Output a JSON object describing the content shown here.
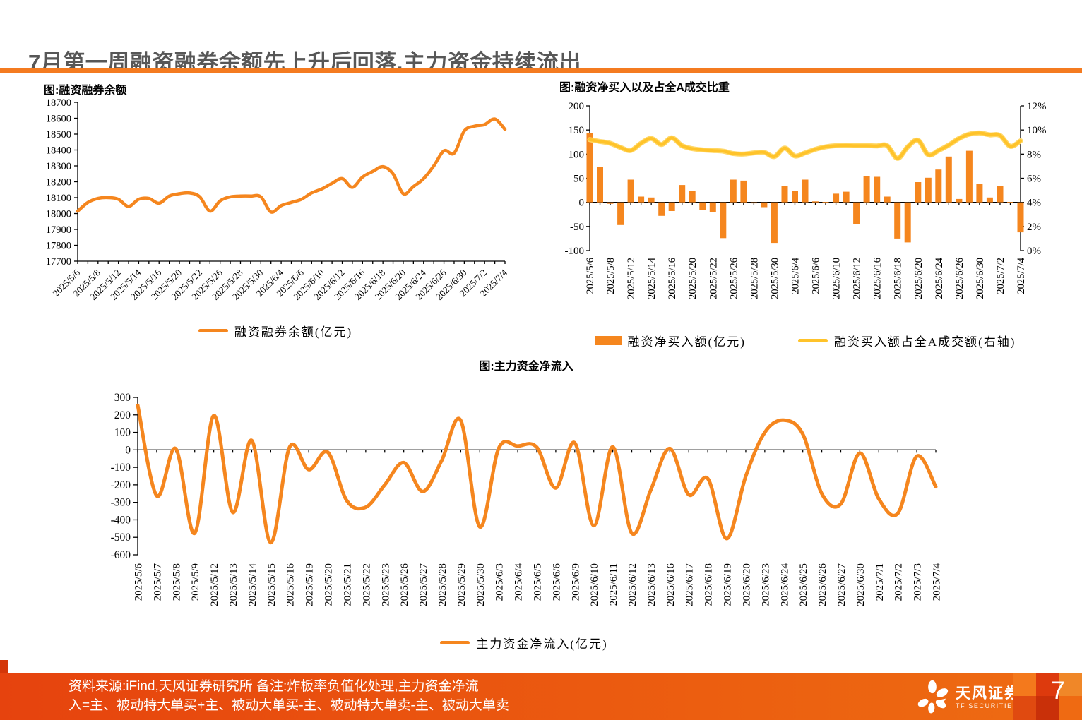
{
  "page": {
    "title": "7月第一周融资融券余额先上升后回落,主力资金持续流出",
    "page_number": "7"
  },
  "colors": {
    "accent_orange": "#F5861E",
    "accent_yellow": "#FFC32A",
    "title_gray": "#575757",
    "rule_orange": "#F47B20",
    "footer_gradient_left": "#E6430E",
    "footer_gradient_right": "#EE6C12"
  },
  "footer": {
    "note_line1": "资料来源:iFind,天风证券研究所 备注:炸板率负值化处理,主力资金净流",
    "note_line2": "入=主、被动特大单买+主、被动大单买-主、被动特大单卖-主、被动大单卖",
    "brand_cn": "天风证券",
    "brand_en": "TF SECURITIES"
  },
  "chart_data": [
    {
      "id": "margin-balance",
      "type": "line",
      "title": "图:融资融券余额",
      "legend_label": "融资融券余额(亿元)",
      "x": [
        "2025/5/6",
        "2025/5/7",
        "2025/5/8",
        "2025/5/9",
        "2025/5/12",
        "2025/5/13",
        "2025/5/14",
        "2025/5/15",
        "2025/5/16",
        "2025/5/19",
        "2025/5/20",
        "2025/5/21",
        "2025/5/22",
        "2025/5/23",
        "2025/5/26",
        "2025/5/27",
        "2025/5/28",
        "2025/5/29",
        "2025/5/30",
        "2025/6/3",
        "2025/6/4",
        "2025/6/5",
        "2025/6/6",
        "2025/6/9",
        "2025/6/10",
        "2025/6/11",
        "2025/6/12",
        "2025/6/13",
        "2025/6/16",
        "2025/6/17",
        "2025/6/18",
        "2025/6/19",
        "2025/6/20",
        "2025/6/23",
        "2025/6/24",
        "2025/6/25",
        "2025/6/26",
        "2025/6/27",
        "2025/6/30",
        "2025/7/1",
        "2025/7/2",
        "2025/7/3",
        "2025/7/4"
      ],
      "values": [
        18015,
        18070,
        18095,
        18100,
        18090,
        18045,
        18090,
        18095,
        18065,
        18110,
        18125,
        18130,
        18105,
        18015,
        18080,
        18105,
        18110,
        18110,
        18105,
        18010,
        18050,
        18070,
        18090,
        18130,
        18155,
        18190,
        18220,
        18165,
        18230,
        18265,
        18295,
        18250,
        18125,
        18170,
        18220,
        18300,
        18395,
        18380,
        18520,
        18550,
        18560,
        18595,
        18530
      ],
      "ylim": [
        17700,
        18700
      ],
      "yticks": [
        18700,
        18600,
        18500,
        18400,
        18300,
        18200,
        18100,
        18000,
        17900,
        17800,
        17700
      ],
      "x_label_every": 2,
      "grid": false,
      "legend_position": "bottom"
    },
    {
      "id": "financing-net-buy-and-share",
      "type": "bar+line",
      "title": "图:融资净买入以及占全A成交比重",
      "x": [
        "2025/5/6",
        "2025/5/7",
        "2025/5/8",
        "2025/5/9",
        "2025/5/12",
        "2025/5/13",
        "2025/5/14",
        "2025/5/15",
        "2025/5/16",
        "2025/5/19",
        "2025/5/20",
        "2025/5/21",
        "2025/5/22",
        "2025/5/23",
        "2025/5/26",
        "2025/5/27",
        "2025/5/28",
        "2025/5/29",
        "2025/5/30",
        "2025/6/3",
        "2025/6/4",
        "2025/6/5",
        "2025/6/6",
        "2025/6/9",
        "2025/6/10",
        "2025/6/11",
        "2025/6/12",
        "2025/6/13",
        "2025/6/16",
        "2025/6/17",
        "2025/6/18",
        "2025/6/19",
        "2025/6/20",
        "2025/6/23",
        "2025/6/24",
        "2025/6/25",
        "2025/6/26",
        "2025/6/27",
        "2025/6/30",
        "2025/7/1",
        "2025/7/2",
        "2025/7/3",
        "2025/7/4"
      ],
      "series": [
        {
          "name": "融资净买入额(亿元)",
          "type": "bar",
          "axis": "left",
          "values": [
            143,
            73,
            -3,
            -47,
            47,
            12,
            10,
            -28,
            -18,
            36,
            23,
            -15,
            -21,
            -74,
            47,
            45,
            -2,
            -10,
            -84,
            34,
            23,
            47,
            2,
            1,
            18,
            22,
            -45,
            55,
            53,
            12,
            -75,
            -83,
            42,
            51,
            68,
            95,
            7,
            107,
            38,
            10,
            34,
            1,
            -62
          ]
        },
        {
          "name": "融资买入额占全A成交额(右轴)",
          "type": "line",
          "axis": "right",
          "values": [
            9.2,
            9.05,
            8.9,
            8.55,
            8.3,
            8.9,
            9.3,
            8.8,
            9.35,
            8.7,
            8.45,
            8.35,
            8.3,
            8.25,
            8.05,
            8.0,
            8.1,
            8.15,
            7.8,
            8.5,
            7.85,
            8.1,
            8.4,
            8.6,
            8.7,
            8.72,
            8.7,
            8.7,
            8.68,
            8.7,
            7.65,
            8.6,
            9.15,
            7.95,
            8.3,
            8.75,
            9.3,
            9.65,
            9.75,
            9.6,
            9.55,
            8.65,
            9.1
          ]
        }
      ],
      "ylim_left": [
        -100,
        200
      ],
      "yticks_left": [
        200,
        150,
        100,
        50,
        0,
        -50,
        -100
      ],
      "ylim_right": [
        0,
        12
      ],
      "yticks_right": [
        "12%",
        "10%",
        "8%",
        "6%",
        "4%",
        "2%",
        "0%"
      ],
      "x_label_every": 2,
      "grid": false,
      "legend_position": "bottom"
    },
    {
      "id": "main-funds-net-inflow",
      "type": "line",
      "title": "图:主力资金净流入",
      "legend_label": "主力资金净流入(亿元)",
      "x": [
        "2025/5/6",
        "2025/5/7",
        "2025/5/8",
        "2025/5/9",
        "2025/5/12",
        "2025/5/13",
        "2025/5/14",
        "2025/5/15",
        "2025/5/16",
        "2025/5/19",
        "2025/5/20",
        "2025/5/21",
        "2025/5/22",
        "2025/5/23",
        "2025/5/26",
        "2025/5/27",
        "2025/5/28",
        "2025/5/29",
        "2025/5/30",
        "2025/6/3",
        "2025/6/4",
        "2025/6/5",
        "2025/6/6",
        "2025/6/9",
        "2025/6/10",
        "2025/6/11",
        "2025/6/12",
        "2025/6/13",
        "2025/6/16",
        "2025/6/17",
        "2025/6/18",
        "2025/6/19",
        "2025/6/20",
        "2025/6/23",
        "2025/6/24",
        "2025/6/25",
        "2025/6/26",
        "2025/6/27",
        "2025/6/30",
        "2025/7/1",
        "2025/7/2",
        "2025/7/3",
        "2025/7/4"
      ],
      "values": [
        255,
        -262,
        7,
        -476,
        196,
        -357,
        54,
        -530,
        17,
        -113,
        -13,
        -290,
        -328,
        -200,
        -73,
        -238,
        -60,
        168,
        -440,
        10,
        22,
        15,
        -218,
        40,
        -433,
        17,
        -476,
        -230,
        8,
        -256,
        -164,
        -507,
        -150,
        100,
        170,
        90,
        -250,
        -309,
        -19,
        -280,
        -363,
        -36,
        -211
      ],
      "ylim": [
        -600,
        300
      ],
      "yticks": [
        300,
        200,
        100,
        0,
        -100,
        -200,
        -300,
        -400,
        -500,
        -600
      ],
      "x_label_every": 1,
      "grid": false,
      "legend_position": "bottom"
    }
  ]
}
